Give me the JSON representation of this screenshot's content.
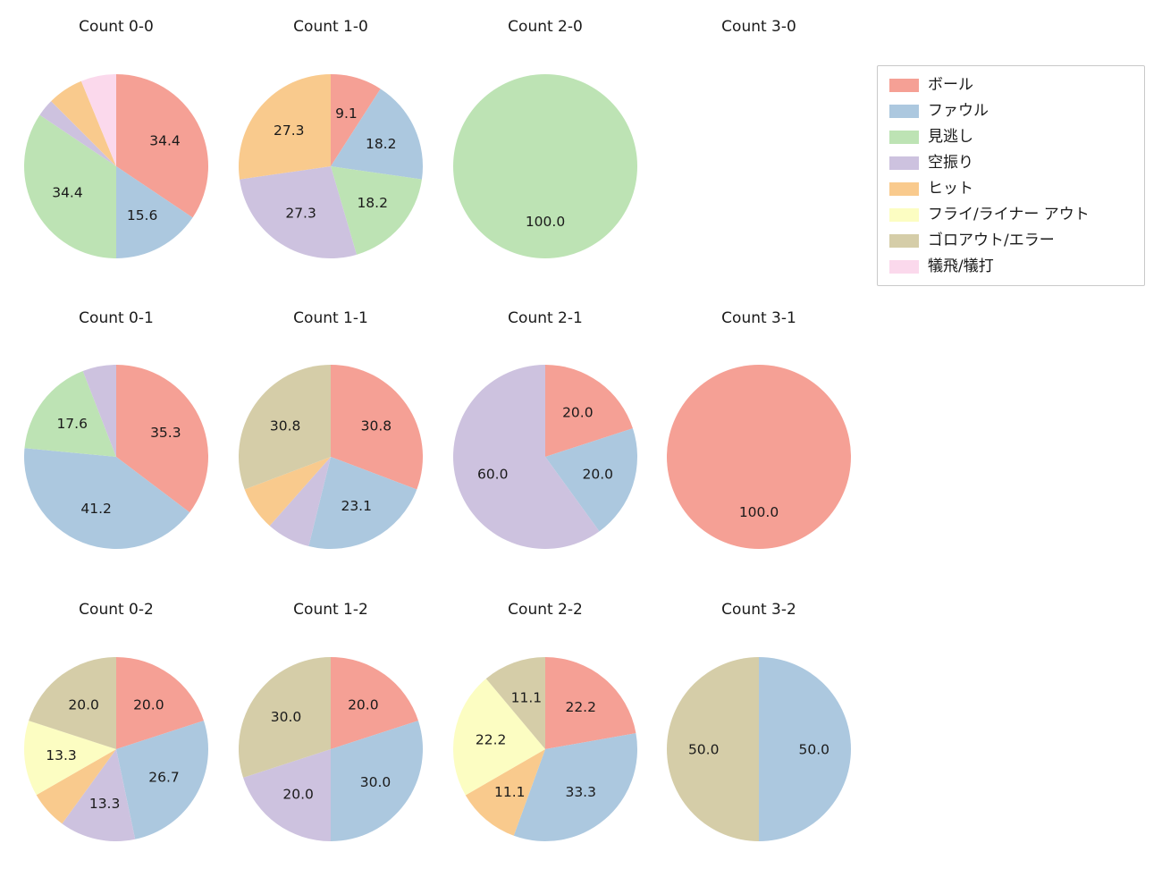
{
  "legend": {
    "items": [
      {
        "label": "ボール",
        "color": "#F5A095"
      },
      {
        "label": "ファウル",
        "color": "#ACC8DF"
      },
      {
        "label": "見逃し",
        "color": "#BDE3B4"
      },
      {
        "label": "空振り",
        "color": "#CDC2DF"
      },
      {
        "label": "ヒット",
        "color": "#F9CA8D"
      },
      {
        "label": "フライ/ライナー アウト",
        "color": "#FCFDC2"
      },
      {
        "label": "ゴロアウト/エラー",
        "color": "#D5CDA8"
      },
      {
        "label": "犠飛/犠打",
        "color": "#FBD9EC"
      }
    ]
  },
  "chart_data": {
    "type": "pie",
    "unit": "percent",
    "start_angle": 90,
    "direction": "clockwise",
    "pct_distance": 0.6,
    "grid": {
      "columns": 4,
      "rows": 3
    },
    "charts": [
      {
        "title": "Count 0-0",
        "slices": [
          {
            "category": "ボール",
            "value": 34.4,
            "labeled": true
          },
          {
            "category": "ファウル",
            "value": 15.6,
            "labeled": true
          },
          {
            "category": "見逃し",
            "value": 34.4,
            "labeled": true
          },
          {
            "category": "空振り",
            "value": 3.1,
            "labeled": false
          },
          {
            "category": "ヒット",
            "value": 6.3,
            "labeled": false
          },
          {
            "category": "犠飛/犠打",
            "value": 6.2,
            "labeled": false
          }
        ]
      },
      {
        "title": "Count 1-0",
        "slices": [
          {
            "category": "ボール",
            "value": 9.1,
            "labeled": true
          },
          {
            "category": "ファウル",
            "value": 18.2,
            "labeled": true
          },
          {
            "category": "見逃し",
            "value": 18.2,
            "labeled": true
          },
          {
            "category": "空振り",
            "value": 27.3,
            "labeled": true
          },
          {
            "category": "ヒット",
            "value": 27.3,
            "labeled": true
          }
        ]
      },
      {
        "title": "Count 2-0",
        "slices": [
          {
            "category": "見逃し",
            "value": 100.0,
            "labeled": true
          }
        ]
      },
      {
        "title": "Count 3-0",
        "slices": []
      },
      {
        "title": "Count 0-1",
        "slices": [
          {
            "category": "ボール",
            "value": 35.3,
            "labeled": true
          },
          {
            "category": "ファウル",
            "value": 41.2,
            "labeled": true
          },
          {
            "category": "見逃し",
            "value": 17.6,
            "labeled": true
          },
          {
            "category": "空振り",
            "value": 5.9,
            "labeled": false
          }
        ]
      },
      {
        "title": "Count 1-1",
        "slices": [
          {
            "category": "ボール",
            "value": 30.8,
            "labeled": true
          },
          {
            "category": "ファウル",
            "value": 23.1,
            "labeled": true
          },
          {
            "category": "空振り",
            "value": 7.7,
            "labeled": false
          },
          {
            "category": "ヒット",
            "value": 7.7,
            "labeled": false
          },
          {
            "category": "ゴロアウト/エラー",
            "value": 30.8,
            "labeled": true
          }
        ]
      },
      {
        "title": "Count 2-1",
        "slices": [
          {
            "category": "ボール",
            "value": 20.0,
            "labeled": true
          },
          {
            "category": "ファウル",
            "value": 20.0,
            "labeled": true
          },
          {
            "category": "空振り",
            "value": 60.0,
            "labeled": true
          }
        ]
      },
      {
        "title": "Count 3-1",
        "slices": [
          {
            "category": "ボール",
            "value": 100.0,
            "labeled": true
          }
        ]
      },
      {
        "title": "Count 0-2",
        "slices": [
          {
            "category": "ボール",
            "value": 20.0,
            "labeled": true
          },
          {
            "category": "ファウル",
            "value": 26.7,
            "labeled": true
          },
          {
            "category": "空振り",
            "value": 13.3,
            "labeled": true
          },
          {
            "category": "ヒット",
            "value": 6.7,
            "labeled": false
          },
          {
            "category": "フライ/ライナー アウト",
            "value": 13.3,
            "labeled": true
          },
          {
            "category": "ゴロアウト/エラー",
            "value": 20.0,
            "labeled": true
          }
        ]
      },
      {
        "title": "Count 1-2",
        "slices": [
          {
            "category": "ボール",
            "value": 20.0,
            "labeled": true
          },
          {
            "category": "ファウル",
            "value": 30.0,
            "labeled": true
          },
          {
            "category": "空振り",
            "value": 20.0,
            "labeled": true
          },
          {
            "category": "ゴロアウト/エラー",
            "value": 30.0,
            "labeled": true
          }
        ]
      },
      {
        "title": "Count 2-2",
        "slices": [
          {
            "category": "ボール",
            "value": 22.2,
            "labeled": true
          },
          {
            "category": "ファウル",
            "value": 33.3,
            "labeled": true
          },
          {
            "category": "ヒット",
            "value": 11.1,
            "labeled": true
          },
          {
            "category": "フライ/ライナー アウト",
            "value": 22.2,
            "labeled": true
          },
          {
            "category": "ゴロアウト/エラー",
            "value": 11.1,
            "labeled": true
          }
        ]
      },
      {
        "title": "Count 3-2",
        "slices": [
          {
            "category": "ファウル",
            "value": 50.0,
            "labeled": true
          },
          {
            "category": "ゴロアウト/エラー",
            "value": 50.0,
            "labeled": true
          }
        ]
      }
    ]
  }
}
